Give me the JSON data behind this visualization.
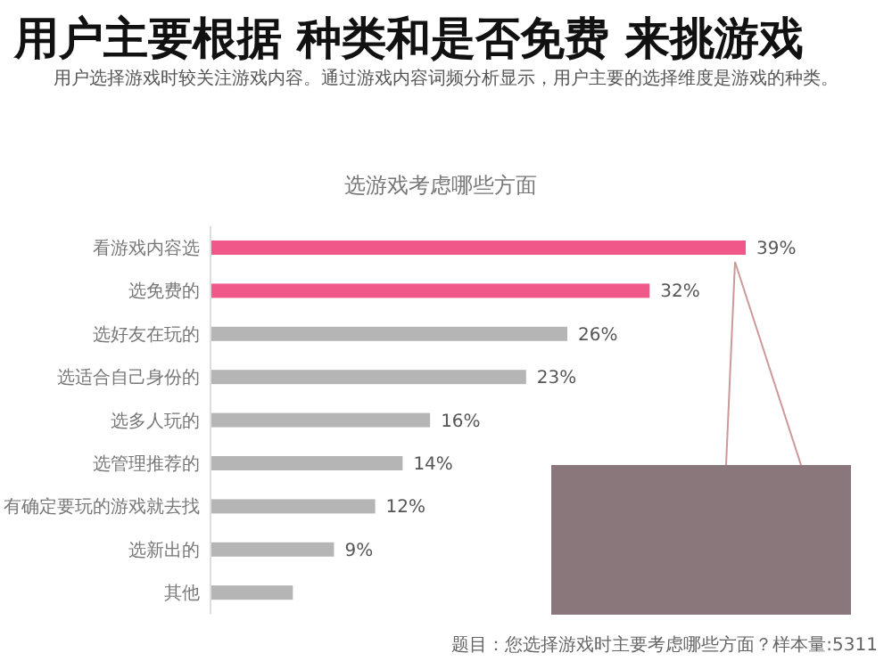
{
  "chart_data": {
    "type": "bar",
    "orientation": "horizontal",
    "title": "用户主要根据 种类和是否免费 来挑游戏",
    "subtitle": "用户选择游戏时较关注游戏内容。通过游戏内容词频分析显示，用户主要的选择维度是游戏的种类。",
    "annotations": [
      "选游戏考虑哪些方面",
      "题目：您选择游戏时主要考虑哪些方面？样本量:5311"
    ],
    "categories": [
      "看游戏内容选",
      "选免费的",
      "选好友在玩的",
      "选适合自己身份的",
      "选多人玩的",
      "选管理推荐的",
      "有确定要玩的游戏就去找",
      "选新出的",
      "其他"
    ],
    "values": [
      39,
      32,
      26,
      23,
      16,
      14,
      12,
      9,
      6
    ],
    "value_labels": [
      "39%",
      "32%",
      "26%",
      "23%",
      "16%",
      "14%",
      "12%",
      "9%",
      null
    ],
    "colors": [
      "#f0588a",
      "#f0588a",
      "#b5b5b5",
      "#b5b5b5",
      "#b5b5b5",
      "#b5b5b5",
      "#b5b5b5",
      "#b5b5b5",
      "#b5b5b5"
    ]
  }
}
